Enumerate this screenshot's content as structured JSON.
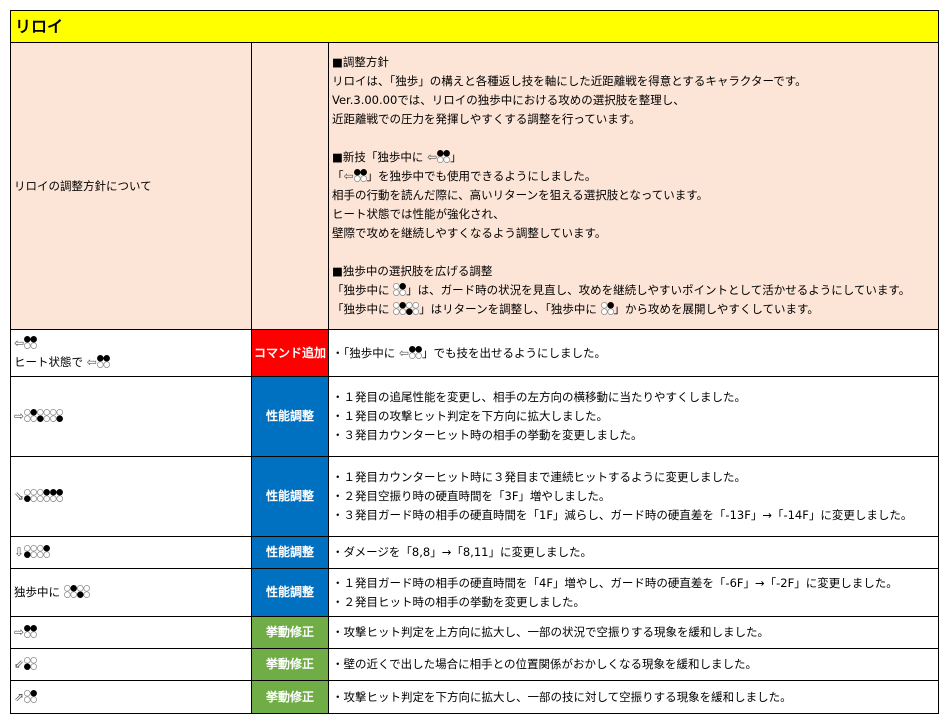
{
  "title": "リロイ",
  "colors": {
    "header": "#ffff00",
    "policy_bg": "#fce4d6",
    "command_add": "#ff0000",
    "performance": "#0070c0",
    "behavior": "#70ad47"
  },
  "policy": {
    "label": "リロイの調整方針について",
    "lines": [
      [
        {
          "t": "■調整方針"
        }
      ],
      [
        {
          "t": "リロイは、「独歩」の構えと各種返し技を軸にした近距離戦を得意とするキャラクターです。"
        }
      ],
      [
        {
          "t": "Ver.3.00.00では、リロイの独歩中における攻めの選択肢を整理し、"
        }
      ],
      [
        {
          "t": "近距離戦での圧力を発揮しやすくする調整を行っています。"
        }
      ],
      [],
      [
        {
          "t": "■新技「独歩中に "
        },
        {
          "arrow": "⇦"
        },
        {
          "btn": [
            1,
            2
          ]
        },
        {
          "t": "」"
        }
      ],
      [
        {
          "t": "「"
        },
        {
          "arrow": "⇦"
        },
        {
          "btn": [
            1,
            2
          ]
        },
        {
          "t": "」を独歩中でも使用できるようにしました。"
        }
      ],
      [
        {
          "t": "相手の行動を読んだ際に、高いリターンを狙える選択肢となっています。"
        }
      ],
      [
        {
          "t": "ヒート状態では性能が強化され、"
        }
      ],
      [
        {
          "t": "壁際で攻めを継続しやすくなるよう調整しています。"
        }
      ],
      [],
      [
        {
          "t": "■独歩中の選択肢を広げる調整"
        }
      ],
      [
        {
          "t": "「独歩中に "
        },
        {
          "btn": [
            2
          ]
        },
        {
          "t": "」は、ガード時の状況を見直し、攻めを継続しやすいポイントとして活かせるようにしています。"
        }
      ],
      [
        {
          "t": "「独歩中に "
        },
        {
          "btn": [
            2
          ]
        },
        {
          "btn": [
            3
          ]
        },
        {
          "t": "」はリターンを調整し、「独歩中に "
        },
        {
          "btn": [
            2
          ]
        },
        {
          "t": "」から攻めを展開しやすくしています。"
        }
      ]
    ]
  },
  "rows": [
    {
      "command": [
        [
          {
            "arrow": "⇦"
          },
          {
            "btn": [
              1,
              2
            ]
          }
        ],
        [
          {
            "t": "ヒート状態で "
          },
          {
            "arrow": "⇦"
          },
          {
            "btn": [
              1,
              2
            ]
          }
        ]
      ],
      "category": "コマンド追加",
      "type": "command_add",
      "notes": [
        [
          {
            "t": "・「独歩中に "
          },
          {
            "arrow": "⇦"
          },
          {
            "btn": [
              1,
              2
            ]
          },
          {
            "t": "」でも技を出せるようにしました。"
          }
        ]
      ]
    },
    {
      "command": [
        [
          {
            "arrow": "⇨"
          },
          {
            "btn": [
              2
            ]
          },
          {
            "btn": [
              3
            ]
          },
          {
            "btn": [
              4
            ]
          }
        ]
      ],
      "category": "性能調整",
      "type": "performance",
      "notes": [
        [
          {
            "t": "・１発目の追尾性能を変更し、相手の左方向の横移動に当たりやすくしました。"
          }
        ],
        [
          {
            "t": "・１発目の攻撃ヒット判定を下方向に拡大しました。"
          }
        ],
        [
          {
            "t": "・３発目カウンターヒット時の相手の挙動を変更しました。"
          }
        ]
      ]
    },
    {
      "command": [
        [
          {
            "arrow": "⇘"
          },
          {
            "btn": [
              3
            ]
          },
          {
            "btn": [
              2
            ]
          },
          {
            "btn": [
              1,
              2
            ]
          }
        ]
      ],
      "category": "性能調整",
      "type": "performance",
      "notes": [
        [
          {
            "t": "・１発目カウンターヒット時に３発目まで連続ヒットするように変更しました。"
          }
        ],
        [
          {
            "t": "・２発目空振り時の硬直時間を「3F」増やしました。"
          }
        ],
        [
          {
            "t": "・３発目ガード時の相手の硬直時間を「1F」減らし、ガード時の硬直差を「-13F」→「-14F」に変更しました。"
          }
        ]
      ]
    },
    {
      "command": [
        [
          {
            "arrow": "⇩"
          },
          {
            "btn": [
              3
            ]
          },
          {
            "btn": [
              2
            ]
          }
        ]
      ],
      "category": "性能調整",
      "type": "performance",
      "notes": [
        [
          {
            "t": "・ダメージを「8,8」→「8,11」に変更しました。"
          }
        ]
      ]
    },
    {
      "command": [
        [
          {
            "t": "独歩中に "
          },
          {
            "btn": [
              2
            ]
          },
          {
            "btn": [
              3
            ]
          }
        ]
      ],
      "category": "性能調整",
      "type": "performance",
      "notes": [
        [
          {
            "t": "・１発目ガード時の相手の硬直時間を「4F」増やし、ガード時の硬直差を「-6F」→「-2F」に変更しました。"
          }
        ],
        [
          {
            "t": "・２発目ヒット時の相手の挙動を変更しました。"
          }
        ]
      ]
    },
    {
      "command": [
        [
          {
            "arrow": "⇨"
          },
          {
            "btn": [
              1,
              2
            ]
          }
        ]
      ],
      "category": "挙動修正",
      "type": "behavior",
      "notes": [
        [
          {
            "t": "・攻撃ヒット判定を上方向に拡大し、一部の状況で空振りする現象を緩和しました。"
          }
        ]
      ]
    },
    {
      "command": [
        [
          {
            "arrow": "⇙"
          },
          {
            "btn": [
              3
            ]
          }
        ]
      ],
      "category": "挙動修正",
      "type": "behavior",
      "notes": [
        [
          {
            "t": "・壁の近くで出した場合に相手との位置関係がおかしくなる現象を緩和しました。"
          }
        ]
      ]
    },
    {
      "command": [
        [
          {
            "arrow": "⇗"
          },
          {
            "btn": [
              2
            ]
          }
        ]
      ],
      "category": "挙動修正",
      "type": "behavior",
      "notes": [
        [
          {
            "t": "・攻撃ヒット判定を下方向に拡大し、一部の技に対して空振りする現象を緩和しました。"
          }
        ]
      ]
    }
  ]
}
